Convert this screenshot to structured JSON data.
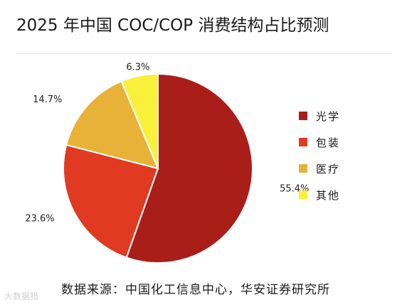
{
  "chart_data": {
    "type": "pie",
    "title": "2025 年中国 COC/COP 消费结构占比预测",
    "categories": [
      "光学",
      "包装",
      "医疗",
      "其他"
    ],
    "values": [
      55.4,
      23.6,
      14.7,
      6.3
    ],
    "labels": [
      "55.4%",
      "23.6%",
      "14.7%",
      "6.3%"
    ],
    "colors": [
      "#aa1e1a",
      "#e03a22",
      "#e8b239",
      "#f9f03c"
    ],
    "start_angle_deg": 0,
    "direction": "clockwise",
    "legend_position": "right"
  },
  "source": "数据来源：中国化工信息中心，华安证券研究所",
  "watermark": "大数据猎"
}
